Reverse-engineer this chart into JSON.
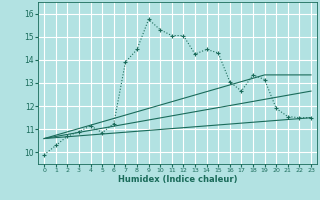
{
  "xlabel": "Humidex (Indice chaleur)",
  "background_color": "#b2e2e2",
  "grid_color": "#c8e8e8",
  "line_color": "#1a6b5a",
  "xlim": [
    -0.5,
    23.5
  ],
  "ylim": [
    9.5,
    16.5
  ],
  "xticks": [
    0,
    1,
    2,
    3,
    4,
    5,
    6,
    7,
    8,
    9,
    10,
    11,
    12,
    13,
    14,
    15,
    16,
    17,
    18,
    19,
    20,
    21,
    22,
    23
  ],
  "yticks": [
    10,
    11,
    12,
    13,
    14,
    15,
    16
  ],
  "main_x": [
    0,
    1,
    2,
    3,
    4,
    5,
    6,
    7,
    8,
    9,
    10,
    11,
    12,
    13,
    14,
    15,
    16,
    17,
    18,
    19,
    20,
    21,
    22,
    23
  ],
  "main_y": [
    9.9,
    10.3,
    10.7,
    10.9,
    11.15,
    10.85,
    11.25,
    13.9,
    14.45,
    15.75,
    15.3,
    15.05,
    15.05,
    14.25,
    14.45,
    14.3,
    13.05,
    12.65,
    13.35,
    13.15,
    11.9,
    11.55,
    11.5,
    11.5
  ],
  "line1_x": [
    0,
    23
  ],
  "line1_y": [
    10.6,
    11.5
  ],
  "line2_x": [
    0,
    23
  ],
  "line2_y": [
    10.6,
    12.65
  ],
  "line3_x": [
    0,
    19,
    23
  ],
  "line3_y": [
    10.6,
    13.35,
    13.35
  ]
}
